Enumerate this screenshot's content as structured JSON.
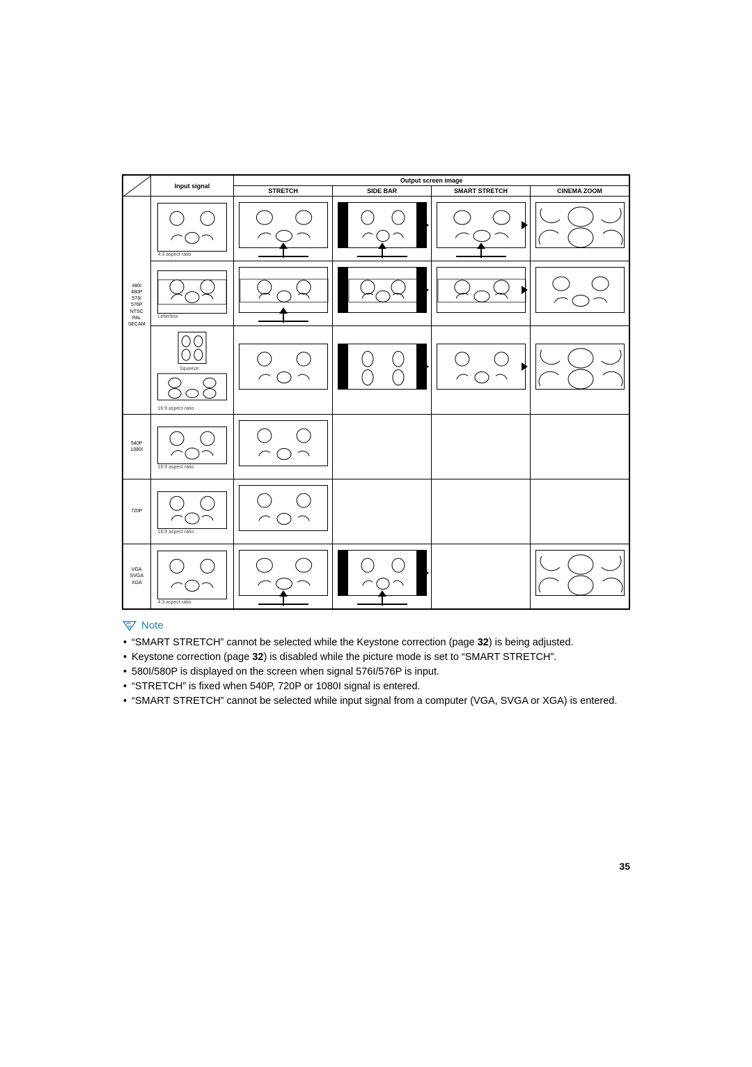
{
  "headers": {
    "input_signal": "Input signal",
    "output_top": "Output screen image",
    "modes": [
      "STRETCH",
      "SIDE BAR",
      "SMART STRETCH",
      "CINEMA ZOOM"
    ]
  },
  "rows": [
    {
      "group_label": "480I\n480P\n576I\n576P\nNTSC\nPAL\nSECAM",
      "group_rows": 3,
      "input_caption": "4:3 aspect ratio",
      "input_svg": "full43",
      "outputs": [
        "stretch_up",
        "sidebar_up",
        "smart_up",
        "zoom_plain"
      ]
    },
    {
      "input_caption": "Letterbox",
      "input_svg": "letter",
      "outputs": [
        "letter_stretch_up",
        "letter_sidebar",
        "letter_smart",
        "letter_zoom_full"
      ]
    },
    {
      "input_caption_top": "Squeeze",
      "input_caption": "16:9 aspect ratio",
      "input_svg": "squeeze_double",
      "outputs": [
        "hd_stretch",
        "squeeze_sidebar",
        "squeeze_smart",
        "zoom_plain"
      ]
    },
    {
      "group_label": "540P\n1080I",
      "group_rows": 1,
      "input_caption": "16:9 aspect ratio",
      "input_svg": "hd",
      "outputs": [
        "hd_stretch",
        "",
        "",
        ""
      ]
    },
    {
      "group_label": "720P",
      "group_rows": 1,
      "input_caption": "16:9 aspect ratio",
      "input_svg": "hd",
      "outputs": [
        "hd_stretch",
        "",
        "",
        ""
      ]
    },
    {
      "group_label": "VGA\nSVGA\nXGA",
      "group_rows": 1,
      "input_caption": "4:3 aspect ratio",
      "input_svg": "full43",
      "outputs": [
        "stretch_up",
        "sidebar_up",
        "",
        "zoom_plain"
      ]
    }
  ],
  "note_label": "Note",
  "notes": [
    "“SMART STRETCH” cannot be selected while the Keystone correction (page 32) is being adjusted.",
    "Keystone correction (page 32) is disabled while the picture mode is set to “SMART STRETCH”.",
    "580I/580P is displayed on the screen when signal 576I/576P is input.",
    "“STRETCH” is fixed when 540P, 720P or 1080I signal is entered.",
    "“SMART STRETCH” cannot be selected while input signal from a computer (VGA, SVGA or XGA) is entered."
  ],
  "page_number": "35",
  "svg": {
    "stroke": "#000000",
    "circle_r": 8
  }
}
